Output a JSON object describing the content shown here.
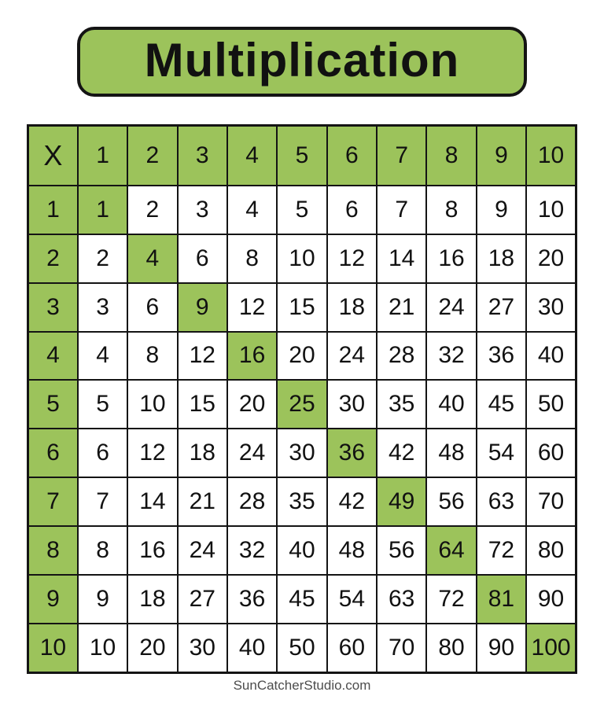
{
  "title": {
    "label": "Multiplication"
  },
  "colors": {
    "cell_green": "#9cc35b",
    "border": "#141414",
    "text": "#111111",
    "attribution": "#4d4d4d",
    "page_background": "#ffffff"
  },
  "table": {
    "corner_label": "X",
    "column_headers": [
      "1",
      "2",
      "3",
      "4",
      "5",
      "6",
      "7",
      "8",
      "9",
      "10"
    ],
    "rows": [
      {
        "header": "1",
        "values": [
          1,
          2,
          3,
          4,
          5,
          6,
          7,
          8,
          9,
          10
        ]
      },
      {
        "header": "2",
        "values": [
          2,
          4,
          6,
          8,
          10,
          12,
          14,
          16,
          18,
          20
        ]
      },
      {
        "header": "3",
        "values": [
          3,
          6,
          9,
          12,
          15,
          18,
          21,
          24,
          27,
          30
        ]
      },
      {
        "header": "4",
        "values": [
          4,
          8,
          12,
          16,
          20,
          24,
          28,
          32,
          36,
          40
        ]
      },
      {
        "header": "5",
        "values": [
          5,
          10,
          15,
          20,
          25,
          30,
          35,
          40,
          45,
          50
        ]
      },
      {
        "header": "6",
        "values": [
          6,
          12,
          18,
          24,
          30,
          36,
          42,
          48,
          54,
          60
        ]
      },
      {
        "header": "7",
        "values": [
          7,
          14,
          21,
          28,
          35,
          42,
          49,
          56,
          63,
          70
        ]
      },
      {
        "header": "8",
        "values": [
          8,
          16,
          24,
          32,
          40,
          48,
          56,
          64,
          72,
          80
        ]
      },
      {
        "header": "9",
        "values": [
          9,
          18,
          27,
          36,
          45,
          54,
          63,
          72,
          81,
          90
        ]
      },
      {
        "header": "10",
        "values": [
          10,
          20,
          30,
          40,
          50,
          60,
          70,
          80,
          90,
          100
        ]
      }
    ],
    "highlight": "header-row, header-column and diagonal perfect squares are green"
  },
  "footer": {
    "attribution": "SunCatcherStudio.com"
  }
}
